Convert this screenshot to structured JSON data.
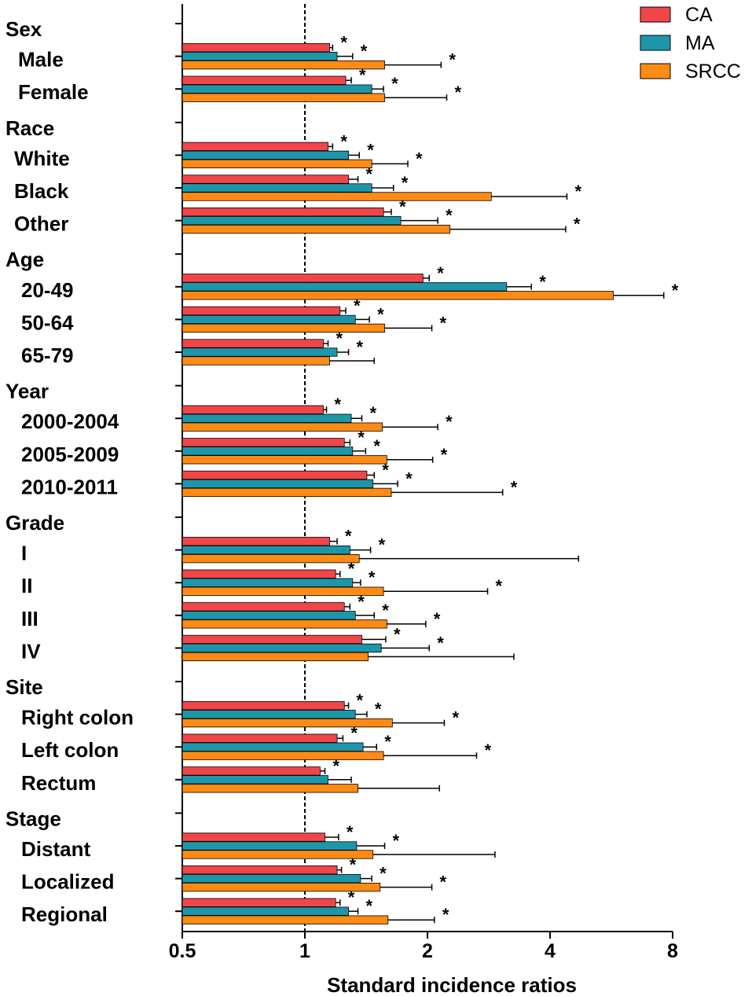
{
  "chart_data": {
    "type": "bar",
    "orientation": "horizontal",
    "xlabel": "Standard incidence ratios",
    "x_scale": "log2",
    "xlim": [
      0.5,
      8
    ],
    "x_ticks": [
      {
        "value": 0.5,
        "label": "0.5"
      },
      {
        "value": 1,
        "label": "1"
      },
      {
        "value": 2,
        "label": "2"
      },
      {
        "value": 4,
        "label": "4"
      },
      {
        "value": 8,
        "label": "8"
      }
    ],
    "reference_line": 1,
    "significance_marker": "*",
    "series": [
      {
        "key": "CA",
        "name": "CA",
        "color": "#f0464a"
      },
      {
        "key": "MA",
        "name": "MA",
        "color": "#1e96aa"
      },
      {
        "key": "SRCC",
        "name": "SRCC",
        "color": "#ff8a14"
      }
    ],
    "groups": [
      {
        "title": "Sex",
        "items": [
          {
            "label": "Male",
            "CA": [
              1.15,
              1.17,
              true
            ],
            "MA": [
              1.2,
              1.31,
              true
            ],
            "SRCC": [
              1.57,
              2.16,
              true
            ]
          },
          {
            "label": "Female",
            "CA": [
              1.26,
              1.3,
              true
            ],
            "MA": [
              1.46,
              1.56,
              true
            ],
            "SRCC": [
              1.57,
              2.23,
              true
            ]
          }
        ]
      },
      {
        "title": "Race",
        "items": [
          {
            "label": "White",
            "CA": [
              1.14,
              1.17,
              true
            ],
            "MA": [
              1.28,
              1.36,
              true
            ],
            "SRCC": [
              1.46,
              1.79,
              true
            ]
          },
          {
            "label": "Black",
            "CA": [
              1.28,
              1.35,
              true
            ],
            "MA": [
              1.46,
              1.65,
              true
            ],
            "SRCC": [
              2.87,
              4.4,
              true
            ]
          },
          {
            "label": "Other",
            "CA": [
              1.56,
              1.63,
              true
            ],
            "MA": [
              1.72,
              2.12,
              true
            ],
            "SRCC": [
              2.27,
              4.37,
              true
            ]
          }
        ]
      },
      {
        "title": "Age",
        "items": [
          {
            "label": "20-49",
            "CA": [
              1.95,
              2.02,
              true
            ],
            "MA": [
              3.13,
              3.6,
              true
            ],
            "SRCC": [
              5.72,
              7.61,
              true
            ]
          },
          {
            "label": "50-64",
            "CA": [
              1.22,
              1.26,
              true
            ],
            "MA": [
              1.33,
              1.44,
              true
            ],
            "SRCC": [
              1.57,
              2.05,
              true
            ]
          },
          {
            "label": "65-79",
            "CA": [
              1.11,
              1.14,
              true
            ],
            "MA": [
              1.2,
              1.28,
              true
            ],
            "SRCC": [
              1.15,
              1.48,
              false
            ]
          }
        ]
      },
      {
        "title": "Year",
        "items": [
          {
            "label": "2000-2004",
            "CA": [
              1.11,
              1.13,
              true
            ],
            "MA": [
              1.3,
              1.38,
              true
            ],
            "SRCC": [
              1.55,
              2.12,
              true
            ]
          },
          {
            "label": "2005-2009",
            "CA": [
              1.25,
              1.29,
              true
            ],
            "MA": [
              1.31,
              1.41,
              true
            ],
            "SRCC": [
              1.59,
              2.06,
              true
            ]
          },
          {
            "label": "2010-2011",
            "CA": [
              1.42,
              1.48,
              true
            ],
            "MA": [
              1.47,
              1.69,
              true
            ],
            "SRCC": [
              1.63,
              3.06,
              true
            ]
          }
        ]
      },
      {
        "title": "Grade",
        "items": [
          {
            "label": "I",
            "CA": [
              1.15,
              1.2,
              true
            ],
            "MA": [
              1.29,
              1.45,
              true
            ],
            "SRCC": [
              1.36,
              4.7,
              false
            ]
          },
          {
            "label": "II",
            "CA": [
              1.19,
              1.22,
              true
            ],
            "MA": [
              1.31,
              1.37,
              true
            ],
            "SRCC": [
              1.56,
              2.81,
              true
            ]
          },
          {
            "label": "III",
            "CA": [
              1.25,
              1.29,
              true
            ],
            "MA": [
              1.33,
              1.48,
              true
            ],
            "SRCC": [
              1.59,
              1.98,
              true
            ]
          },
          {
            "label": "IV",
            "CA": [
              1.38,
              1.58,
              true
            ],
            "MA": [
              1.54,
              2.02,
              true
            ],
            "SRCC": [
              1.43,
              3.26,
              false
            ]
          }
        ]
      },
      {
        "title": "Site",
        "items": [
          {
            "label": "Right colon",
            "CA": [
              1.25,
              1.28,
              true
            ],
            "MA": [
              1.33,
              1.42,
              true
            ],
            "SRCC": [
              1.64,
              2.2,
              true
            ]
          },
          {
            "label": "Left colon",
            "CA": [
              1.2,
              1.24,
              true
            ],
            "MA": [
              1.39,
              1.5,
              true
            ],
            "SRCC": [
              1.56,
              2.64,
              true
            ]
          },
          {
            "label": "Rectum",
            "CA": [
              1.09,
              1.12,
              true
            ],
            "MA": [
              1.14,
              1.3,
              false
            ],
            "SRCC": [
              1.35,
              2.14,
              false
            ]
          }
        ]
      },
      {
        "title": "Stage",
        "items": [
          {
            "label": "Distant",
            "CA": [
              1.12,
              1.21,
              true
            ],
            "MA": [
              1.34,
              1.57,
              true
            ],
            "SRCC": [
              1.47,
              2.93,
              false
            ]
          },
          {
            "label": "Localized",
            "CA": [
              1.2,
              1.23,
              true
            ],
            "MA": [
              1.37,
              1.46,
              true
            ],
            "SRCC": [
              1.53,
              2.05,
              true
            ]
          },
          {
            "label": "Regional",
            "CA": [
              1.19,
              1.22,
              true
            ],
            "MA": [
              1.28,
              1.35,
              true
            ],
            "SRCC": [
              1.6,
              2.08,
              true
            ]
          }
        ]
      }
    ]
  }
}
